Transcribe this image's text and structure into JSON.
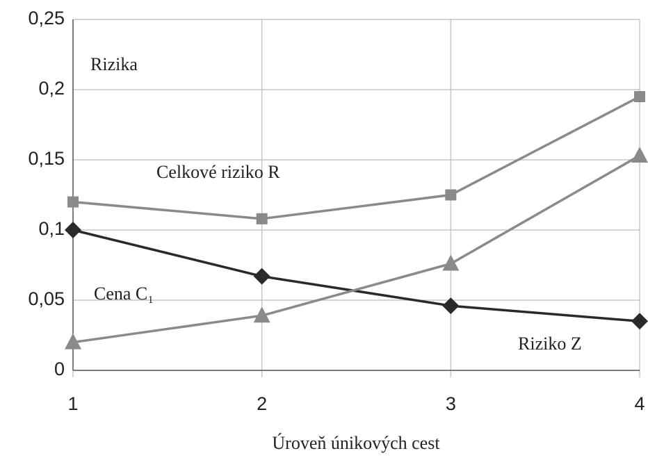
{
  "chart_data": {
    "type": "line",
    "title": "Rizika",
    "x_label": "Úroveň únikových cest",
    "xlim": [
      1,
      4
    ],
    "xticks": [
      1,
      2,
      3,
      4
    ],
    "ylim": [
      0,
      0.25
    ],
    "yticks": [
      {
        "value": 0,
        "label": "0"
      },
      {
        "value": 0.05,
        "label": "0,05"
      },
      {
        "value": 0.1,
        "label": "0,1"
      },
      {
        "value": 0.15,
        "label": "0,15"
      },
      {
        "value": 0.2,
        "label": "0,2"
      },
      {
        "value": 0.25,
        "label": "0,25"
      }
    ],
    "grid": true,
    "x": [
      1,
      2,
      3,
      4
    ],
    "series": [
      {
        "name": "Celkové riziko R",
        "color": "#8a8a8a",
        "marker": "square",
        "values": [
          0.12,
          0.108,
          0.125,
          0.195
        ]
      },
      {
        "name": "Cena C₁",
        "color": "#2a2a2a",
        "marker": "diamond",
        "values": [
          0.1,
          0.067,
          0.046,
          0.035
        ]
      },
      {
        "name": "Riziko Z",
        "color": "#8a8a8a",
        "marker": "triangle",
        "values": [
          0.02,
          0.039,
          0.076,
          0.153
        ]
      }
    ]
  }
}
